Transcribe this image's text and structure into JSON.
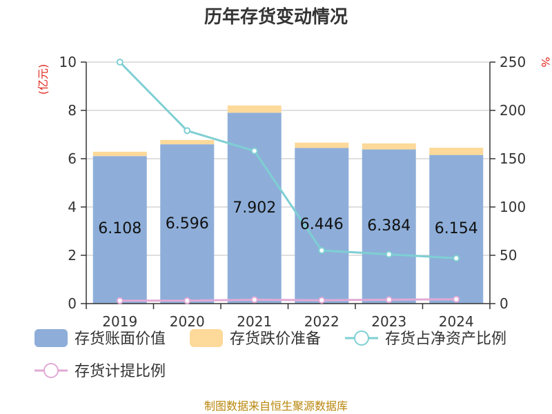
{
  "title": "历年存货变动情况",
  "source": "制图数据来自恒生聚源数据库",
  "chart_data": {
    "type": "bar",
    "title": "历年存货变动情况",
    "categories": [
      "2019",
      "2020",
      "2021",
      "2022",
      "2023",
      "2024"
    ],
    "left_axis": {
      "unit": "(亿元)",
      "ylim": [
        0,
        10
      ],
      "ticks": [
        "0",
        "2",
        "4",
        "6",
        "8",
        "10"
      ]
    },
    "right_axis": {
      "unit": "%",
      "ylim": [
        0,
        250
      ],
      "ticks": [
        "0",
        "50",
        "100",
        "150",
        "200",
        "250"
      ]
    },
    "grid": true,
    "legend_placement": "bottom",
    "series": [
      {
        "name": "存货账面价值",
        "kind": "stacked-bar",
        "axis": "left",
        "color": "#8eaed9",
        "values": [
          6.108,
          6.596,
          7.902,
          6.446,
          6.384,
          6.154
        ],
        "labels": [
          "6.108",
          "6.596",
          "7.902",
          "6.446",
          "6.384",
          "6.154"
        ]
      },
      {
        "name": "存货跌价准备",
        "kind": "stacked-bar",
        "axis": "left",
        "color": "#fdd99a",
        "values": [
          0.18,
          0.18,
          0.3,
          0.22,
          0.25,
          0.3
        ]
      },
      {
        "name": "存货占净资产比例",
        "kind": "line",
        "axis": "right",
        "color": "#7ecfd3",
        "values": [
          250,
          179,
          158,
          55,
          51,
          47
        ]
      },
      {
        "name": "存货计提比例",
        "kind": "line",
        "axis": "right",
        "color": "#e2a9d6",
        "values": [
          3,
          3,
          4,
          3.5,
          4,
          4.5
        ]
      }
    ]
  }
}
